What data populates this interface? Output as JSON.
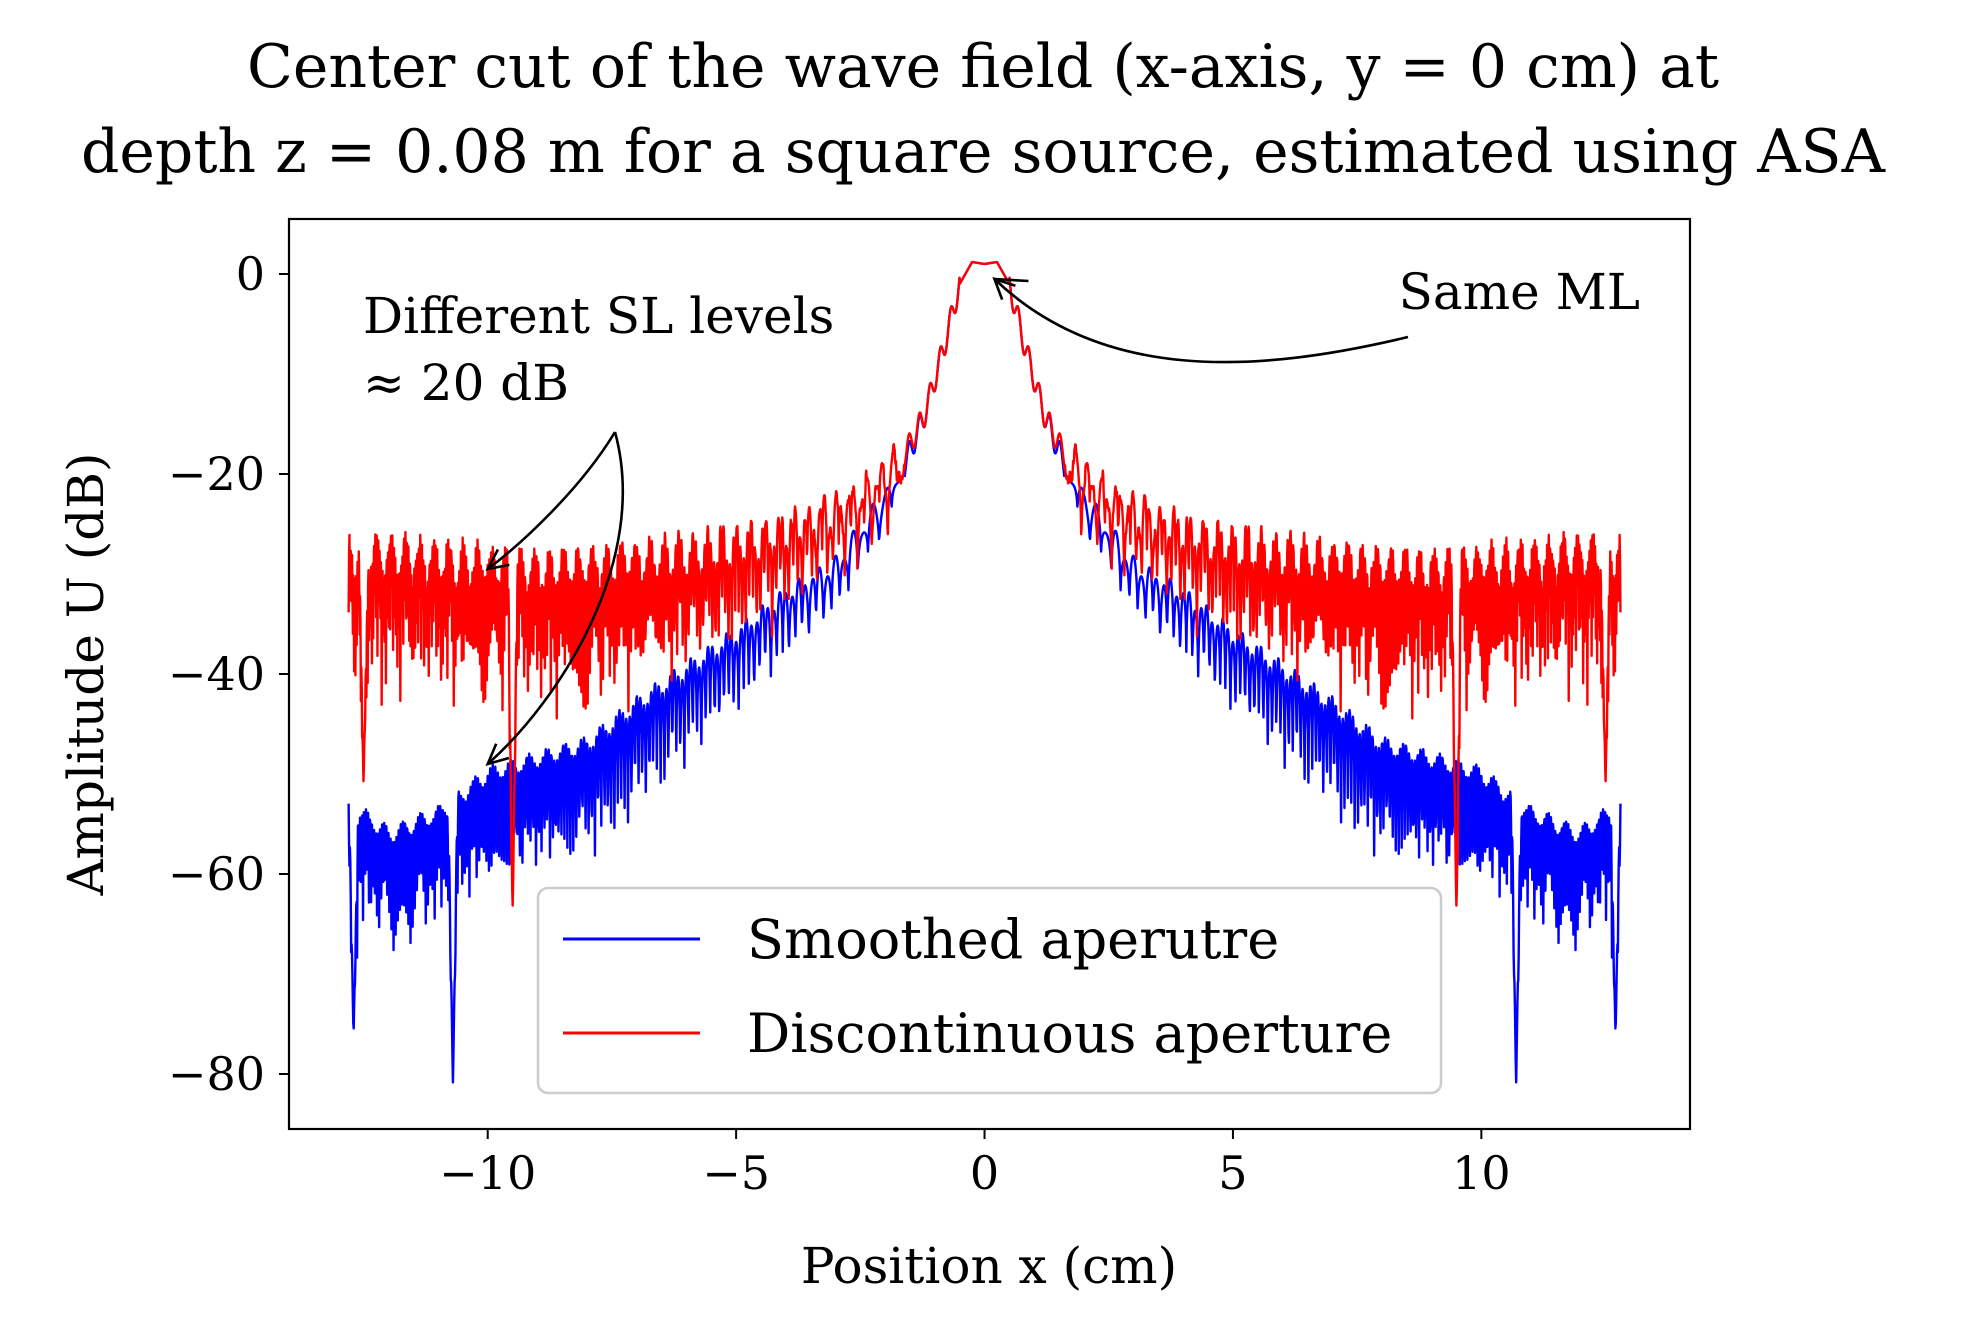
{
  "chart_data": {
    "type": "line",
    "title_line1": "Center cut of the wave field (x-axis, y = 0 cm) at",
    "title_line2": "depth z = 0.08 m for a square source, estimated using ASA",
    "xlabel": "Position x (cm)",
    "ylabel": "Amplitude U (dB)",
    "xlim": [
      -14.0,
      14.2
    ],
    "ylim": [
      -85.5,
      5.5
    ],
    "xticks": [
      -10,
      -5,
      0,
      5,
      10
    ],
    "xtick_labels": [
      "−10",
      "−5",
      "0",
      "5",
      "10"
    ],
    "yticks": [
      0,
      -20,
      -40,
      -60,
      -80
    ],
    "ytick_labels": [
      "0",
      "−20",
      "−40",
      "−60",
      "−80"
    ],
    "grid": false,
    "legend_position": "lower-center",
    "x_range": [
      -12.8,
      12.8
    ],
    "series": [
      {
        "name": "Smoothed aperutre",
        "color": "#0000ff",
        "envelope": {
          "x": [
            0,
            0.25,
            0.5,
            0.8,
            1.2,
            1.6,
            2.0,
            2.5,
            3.0,
            4.0,
            5.0,
            6.0,
            7.0,
            8.0,
            9.0,
            10.0,
            11.0,
            12.0,
            12.8
          ],
          "y": [
            1.0,
            1.2,
            -1.0,
            -7.0,
            -14.0,
            -19.0,
            -22.0,
            -25.5,
            -29.0,
            -32.0,
            -36.0,
            -39.5,
            -43.0,
            -47.0,
            -48.5,
            -50.0,
            -54.0,
            -56.0,
            -53.0
          ]
        },
        "marked_points": [
          {
            "x": -12.7,
            "y": -76
          },
          {
            "x": -10.7,
            "y": -81
          },
          {
            "x": 10.7,
            "y": -81
          },
          {
            "x": 12.7,
            "y": -76
          }
        ]
      },
      {
        "name": "Discontinuous aperture",
        "color": "#ff0000",
        "envelope": {
          "x": [
            0,
            0.25,
            0.5,
            0.8,
            1.2,
            1.6,
            2.0,
            2.5,
            3.0,
            4.0,
            5.0,
            6.0,
            7.0,
            8.0,
            9.0,
            10.0,
            11.0,
            12.0,
            12.8
          ],
          "y": [
            1.0,
            1.2,
            -1.0,
            -7.0,
            -14.0,
            -18.0,
            -20.0,
            -22.0,
            -23.5,
            -25.5,
            -27.0,
            -28.0,
            -28.5,
            -29.0,
            -29.5,
            -29.0,
            -28.5,
            -28.0,
            -28.0
          ]
        },
        "marked_points": [
          {
            "x": -12.5,
            "y": -51
          },
          {
            "x": -9.5,
            "y": -64
          },
          {
            "x": 9.5,
            "y": -64
          },
          {
            "x": 12.5,
            "y": -51
          }
        ]
      }
    ],
    "annotations": [
      {
        "text_line1": "Different SL levels",
        "text_line2": "≈ 20 dB",
        "arrow_targets": [
          {
            "x": -10.0,
            "y": -29.5
          },
          {
            "x": -10.0,
            "y": -49.0
          }
        ]
      },
      {
        "text": "Same ML",
        "arrow_target": {
          "x": 0.2,
          "y": -0.5
        }
      }
    ]
  }
}
